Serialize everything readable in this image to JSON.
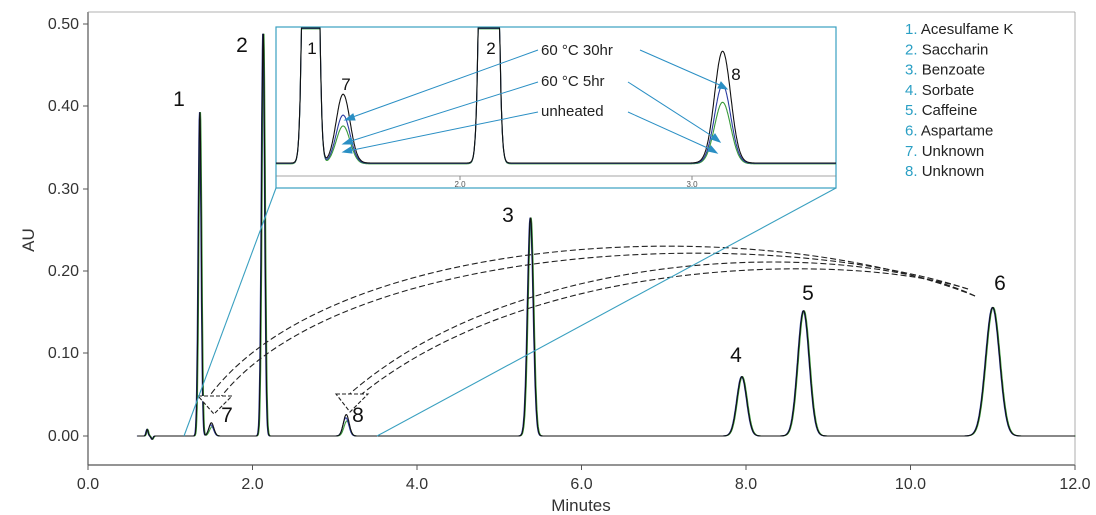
{
  "chart_data": {
    "type": "line",
    "xlabel": "Minutes",
    "ylabel": "AU",
    "xlim": [
      0,
      12
    ],
    "ylim": [
      -0.02,
      0.51
    ],
    "x_ticks": [
      "0.0",
      "2.0",
      "4.0",
      "6.0",
      "8.0",
      "10.0",
      "12.0"
    ],
    "x_tick_values": [
      0,
      2,
      4,
      6,
      8,
      10,
      12
    ],
    "y_ticks": [
      "0.00",
      "0.10",
      "0.20",
      "0.30",
      "0.40",
      "0.50"
    ],
    "y_tick_values": [
      0,
      0.1,
      0.2,
      0.3,
      0.4,
      0.5
    ],
    "grid": false,
    "legend_position": "top-right",
    "legend": [
      {
        "num": "1.",
        "name": "Acesulfame K"
      },
      {
        "num": "2.",
        "name": "Saccharin"
      },
      {
        "num": "3.",
        "name": "Benzoate"
      },
      {
        "num": "4.",
        "name": "Sorbate"
      },
      {
        "num": "5.",
        "name": "Caffeine"
      },
      {
        "num": "6.",
        "name": "Aspartame"
      },
      {
        "num": "7.",
        "name": "Unknown"
      },
      {
        "num": "8.",
        "name": "Unknown"
      }
    ],
    "peaks": [
      {
        "label": "1",
        "x": 1.36,
        "y": 0.393
      },
      {
        "label": "7",
        "x": 1.5,
        "y": 0.016
      },
      {
        "label": "2",
        "x": 2.13,
        "y": 0.49
      },
      {
        "label": "8",
        "x": 3.14,
        "y": 0.026
      },
      {
        "label": "3",
        "x": 5.38,
        "y": 0.265
      },
      {
        "label": "4",
        "x": 7.95,
        "y": 0.072
      },
      {
        "label": "5",
        "x": 8.7,
        "y": 0.152
      },
      {
        "label": "6",
        "x": 11.0,
        "y": 0.156
      }
    ],
    "inset": {
      "x_ticks": [
        "2.0",
        "3.0"
      ],
      "x_tick_values": [
        2.0,
        3.0
      ],
      "peak_labels": [
        "1",
        "7",
        "2",
        "8"
      ],
      "annotations": [
        "60 °C 30hr",
        "60 °C 5hr",
        "unheated"
      ]
    },
    "colors": {
      "axis": "#555555",
      "trace_black": "#111111",
      "trace_green": "#3a9a3a",
      "trace_blue": "#2a3aa0",
      "inset_frame": "#3aa0c0",
      "legend_num": "#2a9fc4",
      "arrow": "#2a8fc4"
    }
  }
}
